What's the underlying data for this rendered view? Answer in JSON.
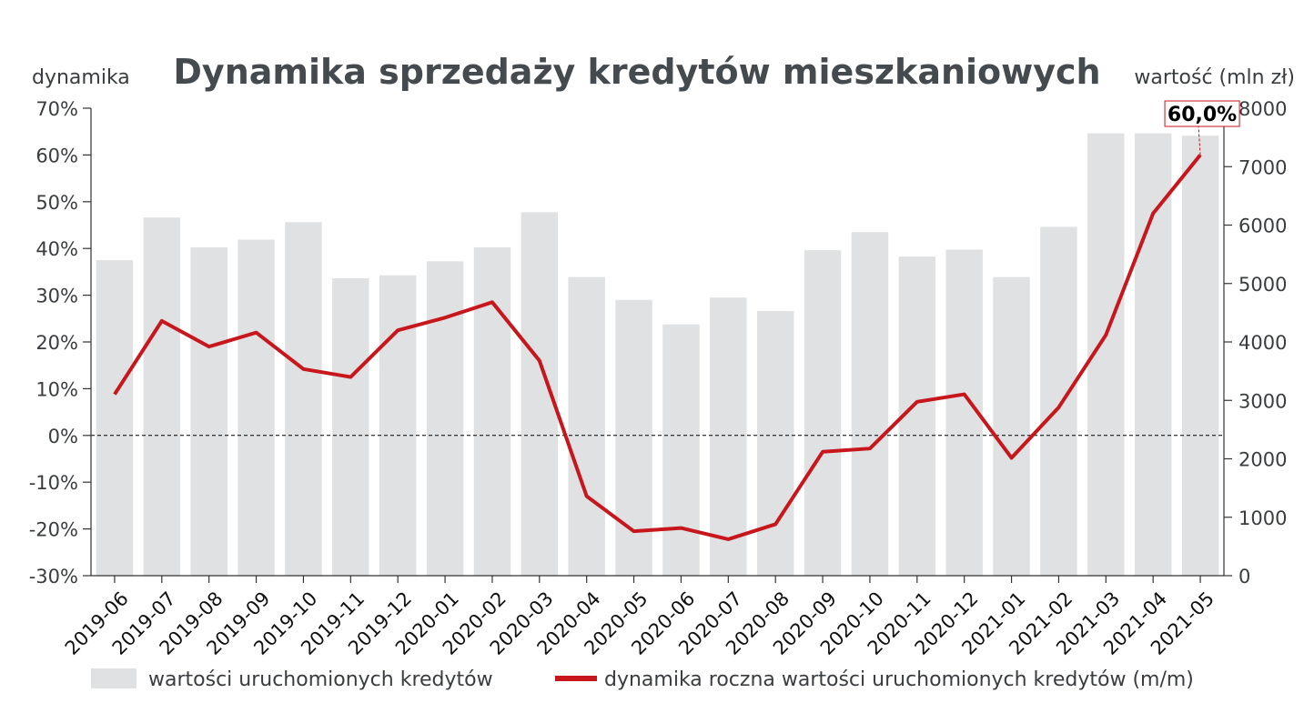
{
  "chart_data": {
    "type": "bar+line",
    "title": "Dynamika sprzedaży kredytów mieszkaniowych",
    "y_left_label": "dynamika",
    "y_right_label": "wartość (mln zł)",
    "y_left_ticks": [
      "70%",
      "60%",
      "50%",
      "40%",
      "30%",
      "20%",
      "10%",
      "0%",
      "-10%",
      "-20%",
      "-30%"
    ],
    "y_right_ticks": [
      "8000",
      "7000",
      "6000",
      "5000",
      "4000",
      "3000",
      "2000",
      "1000",
      "0"
    ],
    "y_left_lim": [
      -30,
      70
    ],
    "y_right_lim": [
      0,
      8000
    ],
    "categories": [
      "2019-06",
      "2019-07",
      "2019-08",
      "2019-09",
      "2019-10",
      "2019-11",
      "2019-12",
      "2020-01",
      "2020-02",
      "2020-03",
      "2020-04",
      "2020-05",
      "2020-06",
      "2020-07",
      "2020-08",
      "2020-09",
      "2020-10",
      "2020-11",
      "2020-12",
      "2021-01",
      "2021-02",
      "2021-03",
      "2021-04",
      "2021-05"
    ],
    "series": [
      {
        "name": "wartości uruchomionych kredytów",
        "type": "bar",
        "axis": "right",
        "color": "#dfe1e2",
        "values": [
          5400,
          6130,
          5620,
          5750,
          6050,
          5090,
          5140,
          5380,
          5620,
          6220,
          5110,
          4720,
          4300,
          4760,
          4530,
          5570,
          5880,
          5460,
          5580,
          5110,
          5970,
          7570,
          7570,
          7530
        ]
      },
      {
        "name": "dynamika roczna wartości uruchomionych kredytów (m/m)",
        "type": "line",
        "axis": "left",
        "color": "#c8161d",
        "values": [
          8.8,
          24.5,
          19.0,
          22.0,
          14.2,
          12.5,
          22.5,
          25.2,
          28.5,
          16.0,
          -13.0,
          -20.5,
          -19.8,
          -22.2,
          -19.0,
          -3.5,
          -2.8,
          7.2,
          8.8,
          -4.8,
          6.0,
          21.5,
          47.5,
          60.0
        ]
      }
    ],
    "annotation": {
      "text": "60,0%",
      "category": "2021-05",
      "value": 60.0
    },
    "reference_line": {
      "axis": "left",
      "value": 0,
      "style": "dashed"
    },
    "legend_position": "bottom"
  }
}
